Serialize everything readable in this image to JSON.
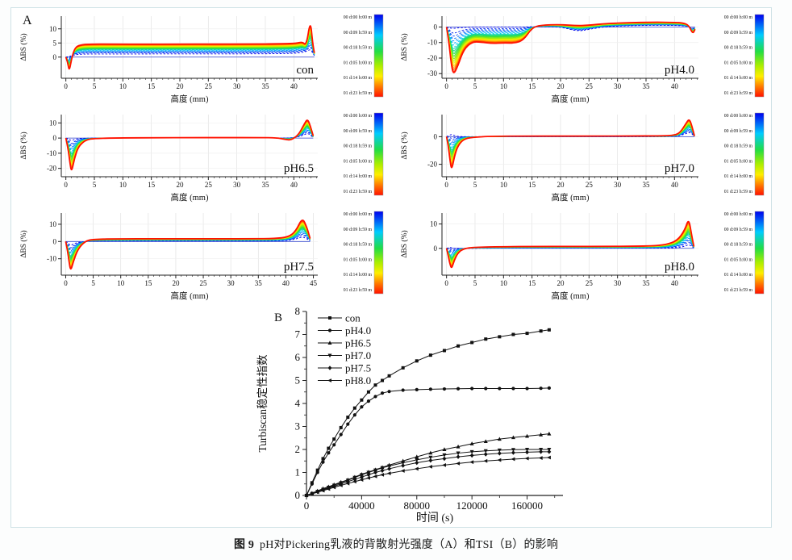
{
  "figure": {
    "caption_prefix": "图 9",
    "caption_text": "pH对Pickering乳液的背散射光强度（A）和TSI（B）的影响"
  },
  "legend_times": [
    "00 d:00 h:00 m",
    "00 d:09 h:59 m",
    "00 d:18 h:59 m",
    "01 d:05 h:00 m",
    "01 d:14 h:00 m",
    "01 d:23 h:59 m"
  ],
  "colors": {
    "colorbar_stops": [
      [
        0,
        "#0000ee"
      ],
      [
        0.25,
        "#00ccff"
      ],
      [
        0.45,
        "#22dd44"
      ],
      [
        0.62,
        "#aaee00"
      ],
      [
        0.75,
        "#ffee00"
      ],
      [
        0.88,
        "#ff7700"
      ],
      [
        1,
        "#ff1100"
      ]
    ],
    "axis": "#222222",
    "grid_v": "#e2e2e2",
    "grid_h": "#efefef",
    "zero_line": "#3344cc",
    "series_black": "#111111"
  },
  "chart_data": [
    {
      "id": "con",
      "type": "line",
      "corner_label": "A",
      "title": "con",
      "xlabel": "高度 (mm)",
      "ylabel": "ΔBS (%)",
      "xlim": [
        -0.8,
        44.2
      ],
      "ylim": [
        -7.5,
        14.5
      ],
      "xticks": [
        0,
        5,
        10,
        15,
        20,
        25,
        30,
        35,
        40
      ],
      "yticks": [
        0,
        5,
        10
      ],
      "xminor_max": 44,
      "n_curves": 26,
      "x": [
        0,
        0.3,
        0.6,
        1.0,
        1.6,
        2.5,
        4,
        8,
        14,
        20,
        26,
        32,
        38,
        40.5,
        41.5,
        42.2,
        42.9,
        43.3,
        43.6
      ],
      "y_first": [
        0,
        0.1,
        0.2,
        0.5,
        0.8,
        1.0,
        1.1,
        1.1,
        1.1,
        1.15,
        1.1,
        1.15,
        1.2,
        1.4,
        1.7,
        2.0,
        2.8,
        1.5,
        0.5
      ],
      "y_final": [
        0,
        -1.5,
        -5.2,
        -0.5,
        3.4,
        4.3,
        4.6,
        4.6,
        4.55,
        4.6,
        4.6,
        4.6,
        4.7,
        4.9,
        5.4,
        4.1,
        13.2,
        5.0,
        1.5
      ]
    },
    {
      "id": "ph40",
      "type": "line",
      "corner_label": "",
      "title": "pH4.0",
      "xlabel": "高度 (mm)",
      "ylabel": "ΔBS (%)",
      "xlim": [
        -0.8,
        44.2
      ],
      "ylim": [
        -33,
        7
      ],
      "xticks": [
        0,
        5,
        10,
        15,
        20,
        25,
        30,
        35,
        40
      ],
      "yticks": [
        0,
        -10,
        -20,
        -30
      ],
      "xminor_max": 44,
      "n_curves": 26,
      "x": [
        0,
        0.4,
        0.8,
        1.2,
        2.0,
        3.0,
        4.5,
        6,
        8,
        10,
        12,
        13.5,
        15,
        16.5,
        20,
        23,
        25,
        28,
        32,
        36,
        40,
        41.5,
        42.5,
        43.2,
        43.6
      ],
      "y_first": [
        0,
        -0.4,
        -0.8,
        -0.9,
        -0.6,
        -0.3,
        -0.1,
        0,
        0,
        0,
        0,
        0,
        0.2,
        0.3,
        0.1,
        -2.8,
        -1.5,
        0.3,
        0.8,
        1.1,
        1.0,
        0.8,
        0.2,
        -1.0,
        -0.4
      ],
      "y_final": [
        0,
        -9,
        -23,
        -31,
        -25,
        -14.5,
        -9.5,
        -9.7,
        -10.6,
        -10.2,
        -10.4,
        -8.5,
        -0.5,
        1.2,
        1.6,
        0.8,
        1.2,
        2.2,
        2.8,
        3.1,
        3.0,
        2.6,
        1.2,
        -4.5,
        -1.5
      ]
    },
    {
      "id": "ph65",
      "type": "line",
      "corner_label": "",
      "title": "pH6.5",
      "xlabel": "高度 (mm)",
      "ylabel": "ΔBS (%)",
      "xlim": [
        -0.8,
        44.2
      ],
      "ylim": [
        -25.5,
        15.5
      ],
      "xticks": [
        0,
        5,
        10,
        15,
        20,
        25,
        30,
        35,
        40
      ],
      "yticks": [
        10,
        0,
        -10,
        -20
      ],
      "xminor_max": 44,
      "n_curves": 26,
      "x": [
        0,
        0.4,
        0.7,
        1.0,
        1.5,
        2.2,
        3.5,
        5,
        10,
        16,
        22,
        28,
        34,
        37,
        38.5,
        39.5,
        40.8,
        41.8,
        42.4,
        42.9,
        43.4
      ],
      "y_first": [
        0,
        -0.6,
        -1.2,
        -1.6,
        -0.9,
        -0.4,
        -0.1,
        0,
        0,
        0,
        0,
        0,
        0,
        0,
        0,
        0.2,
        0.8,
        2.2,
        3.2,
        2.0,
        0.4
      ],
      "y_final": [
        0,
        -7,
        -16,
        -22.8,
        -13.5,
        -5.5,
        -1.2,
        -0.2,
        0.1,
        0.2,
        0.3,
        0.3,
        0.3,
        0.2,
        -0.9,
        -1.4,
        2.0,
        9.0,
        12.8,
        8.0,
        1.5
      ]
    },
    {
      "id": "ph70",
      "type": "line",
      "corner_label": "",
      "title": "pH7.0",
      "xlabel": "高度 (mm)",
      "ylabel": "ΔBS (%)",
      "xlim": [
        -0.8,
        44.2
      ],
      "ylim": [
        -29,
        16
      ],
      "xticks": [
        0,
        5,
        10,
        15,
        20,
        25,
        30,
        35,
        40
      ],
      "yticks": [
        0,
        -20
      ],
      "xminor_max": 44,
      "n_curves": 26,
      "x": [
        0,
        0.3,
        0.6,
        0.9,
        1.4,
        2.0,
        3.0,
        4.5,
        8,
        14,
        20,
        26,
        32,
        38,
        40,
        41,
        42,
        42.6,
        43.1,
        43.5
      ],
      "y_first": [
        0,
        0.6,
        1.2,
        1.6,
        0.8,
        0.2,
        0,
        0,
        0,
        0,
        0,
        0,
        0,
        0,
        0.2,
        0.8,
        2.2,
        3.2,
        1.8,
        0.3
      ],
      "y_final": [
        0,
        -6,
        -17,
        -24.5,
        -14,
        -6.5,
        -1.8,
        -0.4,
        0.3,
        0.4,
        0.4,
        0.4,
        0.5,
        0.6,
        1.0,
        3.0,
        9.5,
        13.2,
        7.0,
        0.5
      ]
    },
    {
      "id": "ph75",
      "type": "line",
      "corner_label": "",
      "title": "pH7.5",
      "xlabel": "高度 (mm)",
      "ylabel": "ΔBS (%)",
      "xlim": [
        -0.8,
        45.8
      ],
      "ylim": [
        -19.5,
        16.5
      ],
      "xticks": [
        0,
        5,
        10,
        15,
        20,
        25,
        30,
        35,
        40,
        45
      ],
      "yticks": [
        10,
        0,
        -10
      ],
      "xminor_max": 45,
      "n_curves": 26,
      "x": [
        0,
        0.3,
        0.6,
        0.9,
        1.4,
        2.2,
        3.5,
        5,
        10,
        16,
        22,
        28,
        34,
        38,
        40.5,
        41.8,
        43,
        43.8,
        44.4
      ],
      "y_first": [
        0,
        -0.5,
        -1.5,
        -2.4,
        -1.4,
        -0.5,
        0,
        0.2,
        0.3,
        0.3,
        0.3,
        0.3,
        0.3,
        0.3,
        0.6,
        1.4,
        2.8,
        1.6,
        0.4
      ],
      "y_final": [
        0,
        -4.5,
        -11.5,
        -17.3,
        -11.5,
        -4.5,
        0.2,
        1.3,
        1.6,
        1.6,
        1.6,
        1.6,
        1.6,
        1.7,
        2.6,
        6.0,
        13.9,
        8.5,
        1.8
      ]
    },
    {
      "id": "ph80",
      "type": "line",
      "corner_label": "",
      "title": "pH8.0",
      "xlabel": "高度 (mm)",
      "ylabel": "ΔBS (%)",
      "xlim": [
        -0.8,
        44.2
      ],
      "ylim": [
        -11,
        14.5
      ],
      "xticks": [
        0,
        5,
        10,
        15,
        20,
        25,
        30,
        35,
        40
      ],
      "yticks": [
        0,
        10
      ],
      "xminor_max": 44,
      "n_curves": 26,
      "x": [
        0,
        0.3,
        0.6,
        0.9,
        1.3,
        2.0,
        3.0,
        5,
        10,
        16,
        22,
        28,
        33,
        36,
        38.5,
        40.5,
        41.8,
        42.5,
        43.0,
        43.4
      ],
      "y_first": [
        0,
        0.2,
        0.4,
        0.2,
        0,
        0,
        0,
        0,
        0.1,
        0.1,
        0.1,
        0.1,
        0.1,
        0.1,
        0.1,
        0.3,
        0.8,
        1.6,
        0.8,
        0.2
      ],
      "y_final": [
        0,
        -3,
        -6.5,
        -8.4,
        -5.2,
        -1.8,
        -0.1,
        0.5,
        0.7,
        0.8,
        0.8,
        0.8,
        0.9,
        1.0,
        1.5,
        3.2,
        7.5,
        12.4,
        5.5,
        0.8
      ]
    },
    {
      "id": "tsi",
      "type": "line",
      "corner_label": "B",
      "xlabel": "时间 (s)",
      "ylabel": "Turbiscan稳定性指数",
      "xlim": [
        0,
        186000
      ],
      "ylim": [
        0,
        8
      ],
      "xticks": [
        0,
        40000,
        80000,
        120000,
        160000
      ],
      "xtick_labels": [
        "0",
        "40000",
        "80000",
        "120000",
        "160000"
      ],
      "yticks": [
        0,
        1,
        2,
        3,
        4,
        5,
        6,
        7,
        8
      ],
      "x": [
        0,
        4000,
        8000,
        12000,
        16000,
        20000,
        25000,
        30000,
        35000,
        40000,
        45000,
        50000,
        55000,
        60000,
        70000,
        80000,
        90000,
        100000,
        110000,
        120000,
        130000,
        140000,
        150000,
        160000,
        170000,
        176000
      ],
      "series": [
        {
          "name": "con",
          "marker": "square",
          "values": [
            0,
            0.55,
            1.1,
            1.6,
            2.05,
            2.45,
            2.95,
            3.4,
            3.8,
            4.15,
            4.5,
            4.8,
            5.0,
            5.2,
            5.55,
            5.85,
            6.1,
            6.3,
            6.5,
            6.65,
            6.8,
            6.9,
            7.0,
            7.05,
            7.15,
            7.2
          ]
        },
        {
          "name": "pH4.0",
          "marker": "circle",
          "values": [
            0,
            0.5,
            1.0,
            1.45,
            1.85,
            2.2,
            2.65,
            3.1,
            3.5,
            3.85,
            4.1,
            4.3,
            4.45,
            4.52,
            4.58,
            4.6,
            4.62,
            4.63,
            4.64,
            4.65,
            4.65,
            4.65,
            4.65,
            4.65,
            4.66,
            4.67
          ]
        },
        {
          "name": "pH6.5",
          "marker": "triangle-up",
          "values": [
            0,
            0.1,
            0.2,
            0.3,
            0.38,
            0.47,
            0.58,
            0.68,
            0.8,
            0.92,
            1.02,
            1.12,
            1.22,
            1.32,
            1.5,
            1.68,
            1.85,
            2.0,
            2.12,
            2.25,
            2.35,
            2.45,
            2.52,
            2.58,
            2.64,
            2.68
          ]
        },
        {
          "name": "pH7.0",
          "marker": "triangle-down",
          "values": [
            0,
            0.08,
            0.17,
            0.26,
            0.35,
            0.44,
            0.55,
            0.66,
            0.78,
            0.9,
            1.0,
            1.1,
            1.2,
            1.28,
            1.42,
            1.55,
            1.66,
            1.76,
            1.84,
            1.9,
            1.94,
            1.97,
            1.99,
            2.0,
            2.0,
            2.0
          ]
        },
        {
          "name": "pH7.5",
          "marker": "diamond",
          "values": [
            0,
            0.08,
            0.16,
            0.24,
            0.32,
            0.4,
            0.5,
            0.6,
            0.7,
            0.8,
            0.9,
            1.0,
            1.08,
            1.16,
            1.3,
            1.42,
            1.52,
            1.6,
            1.68,
            1.74,
            1.79,
            1.83,
            1.86,
            1.88,
            1.9,
            1.9
          ]
        },
        {
          "name": "pH8.0",
          "marker": "triangle-left",
          "values": [
            0,
            0.07,
            0.14,
            0.21,
            0.28,
            0.35,
            0.44,
            0.52,
            0.6,
            0.68,
            0.76,
            0.83,
            0.9,
            0.96,
            1.07,
            1.16,
            1.25,
            1.32,
            1.39,
            1.45,
            1.5,
            1.54,
            1.58,
            1.61,
            1.63,
            1.65
          ]
        }
      ]
    }
  ]
}
